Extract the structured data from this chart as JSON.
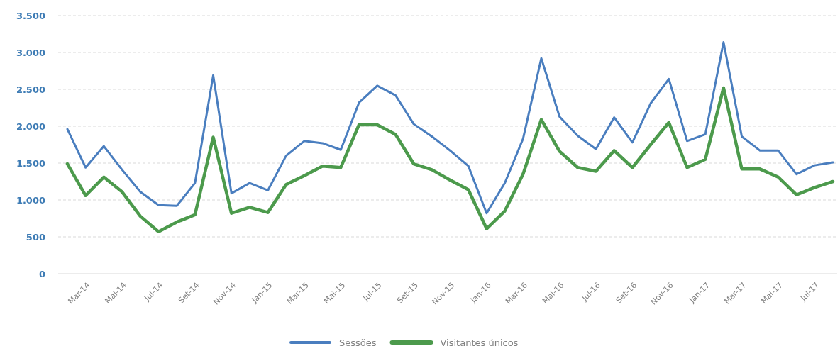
{
  "chart_data": {
    "type": "line",
    "categories": [
      null,
      "Mar-14",
      null,
      "Mai-14",
      null,
      "Jul-14",
      null,
      "Set-14",
      null,
      "Nov-14",
      null,
      "Jan-15",
      null,
      "Mar-15",
      null,
      "Mai-15",
      null,
      "Jul-15",
      null,
      "Set-15",
      null,
      "Nov-15",
      null,
      "Jan-16",
      null,
      "Mar-16",
      null,
      "Mai-16",
      null,
      "Jul-16",
      null,
      "Set-16",
      null,
      "Nov-16",
      null,
      "Jan-17",
      null,
      "Mar-17",
      null,
      "Mai-17",
      null,
      "Jul-17",
      null
    ],
    "series": [
      {
        "name": "Sessões",
        "color": "#4a7ebf",
        "values": [
          1960,
          1440,
          1730,
          1410,
          1110,
          930,
          920,
          1230,
          2690,
          1090,
          1230,
          1130,
          1600,
          1800,
          1770,
          1680,
          2320,
          2550,
          2420,
          2030,
          1860,
          1670,
          1460,
          820,
          1230,
          1830,
          2920,
          2130,
          1870,
          1690,
          2120,
          1780,
          2310,
          2640,
          1800,
          1890,
          3140,
          1860,
          1670,
          1670,
          1350,
          1470,
          1510
        ]
      },
      {
        "name": "Visitantes únicos",
        "color": "#4c9a4c",
        "values": [
          1490,
          1060,
          1310,
          1110,
          780,
          570,
          700,
          800,
          1850,
          820,
          900,
          830,
          1210,
          1330,
          1460,
          1440,
          2020,
          2020,
          1890,
          1490,
          1410,
          1270,
          1140,
          610,
          850,
          1350,
          2090,
          1660,
          1440,
          1390,
          1670,
          1440,
          1750,
          2050,
          1440,
          1550,
          2520,
          1420,
          1420,
          1310,
          1070,
          1170,
          1250
        ]
      }
    ],
    "ylim": [
      0,
      3500
    ],
    "yticks": [
      {
        "value": 0,
        "label": "0"
      },
      {
        "value": 500,
        "label": "500"
      },
      {
        "value": 1000,
        "label": "1.000"
      },
      {
        "value": 1500,
        "label": "1.500"
      },
      {
        "value": 2000,
        "label": "2.000"
      },
      {
        "value": 2500,
        "label": "2.500"
      },
      {
        "value": 3000,
        "label": "3.000"
      },
      {
        "value": 3500,
        "label": "3.500"
      }
    ],
    "grid": "y",
    "legend": "bottom",
    "marker": "none",
    "line_style": "solid"
  }
}
